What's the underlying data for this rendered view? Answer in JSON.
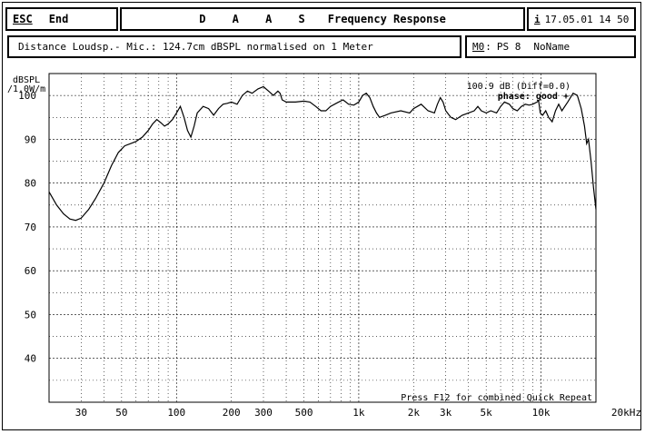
{
  "header": {
    "esc_key": "ESC",
    "esc_action": "End",
    "title_prefix": "D A A S",
    "title": "Frequency Response",
    "info_key": "i",
    "datetime": "17.05.01 14 50"
  },
  "measurement": {
    "description": "Distance Loudsp.- Mic.: 124.7cm dBSPL normalised on 1 Meter",
    "memory_slot": "M0",
    "memory_slot_rest": ":",
    "program": "PS 8",
    "name": "NoName"
  },
  "overlay": {
    "level": "100.9 dB (Diff=0.0)",
    "phase": "phase: good +",
    "hint": "Press F12 for combined Quick Repeat"
  },
  "colors": {
    "line": "#000000",
    "background": "#ffffff",
    "grid": "#000000"
  },
  "chart_data": {
    "type": "line",
    "title": "Frequency Response",
    "ylabel": "dBSPL /1.0W/m",
    "ylabel_lines": [
      "dBSPL",
      "/1.0W/m"
    ],
    "xlabel": "",
    "x_scale": "log",
    "xlim": [
      20,
      20000
    ],
    "ylim": [
      30,
      105
    ],
    "grid": true,
    "x_tick_labels": [
      {
        "f": 30,
        "label": "30"
      },
      {
        "f": 50,
        "label": "50"
      },
      {
        "f": 100,
        "label": "100"
      },
      {
        "f": 200,
        "label": "200"
      },
      {
        "f": 300,
        "label": "300"
      },
      {
        "f": 500,
        "label": "500"
      },
      {
        "f": 1000,
        "label": "1k"
      },
      {
        "f": 2000,
        "label": "2k"
      },
      {
        "f": 3000,
        "label": "3k"
      },
      {
        "f": 5000,
        "label": "5k"
      },
      {
        "f": 10000,
        "label": "10k"
      },
      {
        "f": 20000,
        "label": "20kHz"
      }
    ],
    "y_ticks": [
      40,
      50,
      60,
      70,
      80,
      90,
      100
    ],
    "series": [
      {
        "points": [
          [
            20,
            78.0
          ],
          [
            22,
            75.0
          ],
          [
            24,
            73.0
          ],
          [
            26,
            71.8
          ],
          [
            28,
            71.5
          ],
          [
            30,
            72.0
          ],
          [
            33,
            74.0
          ],
          [
            36,
            76.5
          ],
          [
            40,
            80.0
          ],
          [
            44,
            84.0
          ],
          [
            48,
            87.0
          ],
          [
            52,
            88.5
          ],
          [
            56,
            89.0
          ],
          [
            60,
            89.5
          ],
          [
            65,
            90.5
          ],
          [
            70,
            92.0
          ],
          [
            74,
            93.5
          ],
          [
            78,
            94.5
          ],
          [
            82,
            93.8
          ],
          [
            86,
            93.0
          ],
          [
            90,
            93.5
          ],
          [
            95,
            94.5
          ],
          [
            100,
            96.0
          ],
          [
            105,
            97.5
          ],
          [
            110,
            95.0
          ],
          [
            115,
            92.0
          ],
          [
            120,
            90.5
          ],
          [
            125,
            93.0
          ],
          [
            130,
            96.0
          ],
          [
            140,
            97.5
          ],
          [
            150,
            97.0
          ],
          [
            160,
            95.5
          ],
          [
            170,
            97.0
          ],
          [
            180,
            98.0
          ],
          [
            190,
            98.2
          ],
          [
            200,
            98.5
          ],
          [
            215,
            98.0
          ],
          [
            230,
            100.0
          ],
          [
            245,
            101.0
          ],
          [
            260,
            100.5
          ],
          [
            280,
            101.5
          ],
          [
            300,
            102.0
          ],
          [
            320,
            101.0
          ],
          [
            340,
            100.0
          ],
          [
            360,
            101.0
          ],
          [
            370,
            100.5
          ],
          [
            380,
            99.0
          ],
          [
            400,
            98.5
          ],
          [
            450,
            98.5
          ],
          [
            500,
            98.7
          ],
          [
            540,
            98.5
          ],
          [
            580,
            97.5
          ],
          [
            620,
            96.5
          ],
          [
            660,
            96.5
          ],
          [
            700,
            97.5
          ],
          [
            760,
            98.3
          ],
          [
            820,
            99.0
          ],
          [
            880,
            98.0
          ],
          [
            940,
            97.8
          ],
          [
            1000,
            98.5
          ],
          [
            1050,
            100.0
          ],
          [
            1100,
            100.5
          ],
          [
            1150,
            99.5
          ],
          [
            1200,
            97.5
          ],
          [
            1250,
            96.0
          ],
          [
            1300,
            95.0
          ],
          [
            1400,
            95.5
          ],
          [
            1500,
            96.0
          ],
          [
            1700,
            96.5
          ],
          [
            1900,
            96.0
          ],
          [
            2000,
            97.0
          ],
          [
            2200,
            98.0
          ],
          [
            2400,
            96.5
          ],
          [
            2600,
            96.0
          ],
          [
            2700,
            98.0
          ],
          [
            2800,
            99.5
          ],
          [
            2900,
            98.5
          ],
          [
            3000,
            96.5
          ],
          [
            3200,
            95.0
          ],
          [
            3400,
            94.5
          ],
          [
            3700,
            95.5
          ],
          [
            4000,
            96.0
          ],
          [
            4300,
            96.5
          ],
          [
            4500,
            97.5
          ],
          [
            4700,
            96.5
          ],
          [
            5000,
            96.0
          ],
          [
            5300,
            96.5
          ],
          [
            5700,
            96.0
          ],
          [
            6000,
            97.5
          ],
          [
            6300,
            98.5
          ],
          [
            6700,
            98.0
          ],
          [
            7000,
            97.0
          ],
          [
            7400,
            96.5
          ],
          [
            7800,
            97.5
          ],
          [
            8200,
            98.0
          ],
          [
            8600,
            97.8
          ],
          [
            9000,
            98.0
          ],
          [
            9500,
            98.5
          ],
          [
            9700,
            98.8
          ],
          [
            9900,
            96.0
          ],
          [
            10200,
            95.5
          ],
          [
            10600,
            96.5
          ],
          [
            11000,
            95.0
          ],
          [
            11500,
            94.0
          ],
          [
            12000,
            96.5
          ],
          [
            12500,
            98.0
          ],
          [
            13000,
            96.5
          ],
          [
            14000,
            98.5
          ],
          [
            15000,
            100.5
          ],
          [
            15800,
            100.0
          ],
          [
            16600,
            97.0
          ],
          [
            17300,
            93.0
          ],
          [
            17800,
            89.0
          ],
          [
            18200,
            90.0
          ],
          [
            18800,
            85.0
          ],
          [
            19400,
            79.0
          ],
          [
            20000,
            74.0
          ]
        ]
      }
    ]
  }
}
